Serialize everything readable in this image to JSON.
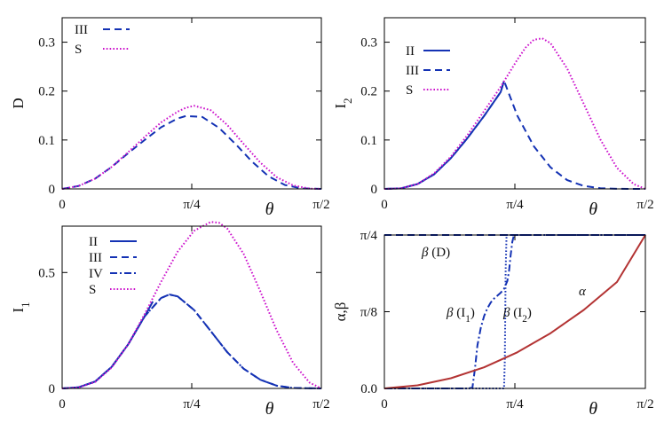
{
  "colors": {
    "blue": "#1432b4",
    "magenta": "#cc11cc",
    "red": "#b33333"
  },
  "chart_data": [
    {
      "id": "D",
      "type": "line",
      "ylabel": "D",
      "xlabel": "θ",
      "xlim": [
        0,
        1.5708
      ],
      "ylim": [
        0,
        0.35
      ],
      "x_ticks": [
        {
          "value": 0,
          "label": "0"
        },
        {
          "value": 0.7854,
          "label": "π/4"
        },
        {
          "value": 1.5708,
          "label": "π/2"
        }
      ],
      "y_ticks": [
        {
          "value": 0,
          "label": "0"
        },
        {
          "value": 0.1,
          "label": "0.1"
        },
        {
          "value": 0.2,
          "label": "0.2"
        },
        {
          "value": 0.3,
          "label": "0.3"
        }
      ],
      "legend_position": "top-left",
      "series": [
        {
          "name": "III",
          "style": "dashed",
          "color": "#1432b4",
          "x": [
            0,
            0.1,
            0.2,
            0.3,
            0.4,
            0.5,
            0.6,
            0.7,
            0.75,
            0.85,
            0.95,
            1.05,
            1.15,
            1.25,
            1.35,
            1.45,
            1.5708
          ],
          "y": [
            0,
            0.006,
            0.021,
            0.045,
            0.073,
            0.1,
            0.126,
            0.144,
            0.149,
            0.147,
            0.125,
            0.092,
            0.056,
            0.026,
            0.008,
            0.001,
            0
          ]
        },
        {
          "name": "S",
          "style": "dotted",
          "color": "#cc11cc",
          "x": [
            0,
            0.1,
            0.2,
            0.3,
            0.4,
            0.5,
            0.6,
            0.7,
            0.75,
            0.8,
            0.9,
            1.0,
            1.1,
            1.2,
            1.3,
            1.4,
            1.5,
            1.5708
          ],
          "y": [
            0,
            0.006,
            0.021,
            0.045,
            0.075,
            0.106,
            0.136,
            0.158,
            0.166,
            0.17,
            0.161,
            0.131,
            0.092,
            0.054,
            0.024,
            0.007,
            0.0005,
            0
          ]
        }
      ]
    },
    {
      "id": "I2",
      "type": "line",
      "ylabel": "I₂",
      "xlabel": "θ",
      "xlim": [
        0,
        1.5708
      ],
      "ylim": [
        0,
        0.35
      ],
      "x_ticks": [
        {
          "value": 0,
          "label": "0"
        },
        {
          "value": 0.7854,
          "label": "π/4"
        },
        {
          "value": 1.5708,
          "label": "π/2"
        }
      ],
      "y_ticks": [
        {
          "value": 0,
          "label": "0"
        },
        {
          "value": 0.1,
          "label": "0.1"
        },
        {
          "value": 0.2,
          "label": "0.2"
        },
        {
          "value": 0.3,
          "label": "0.3"
        }
      ],
      "legend_position": "top-left",
      "series": [
        {
          "name": "II",
          "style": "solid",
          "color": "#1432b4",
          "x": [
            0,
            0.1,
            0.2,
            0.3,
            0.4,
            0.5,
            0.6,
            0.7,
            0.72
          ],
          "y": [
            0,
            0.001,
            0.01,
            0.03,
            0.063,
            0.104,
            0.149,
            0.198,
            0.221
          ]
        },
        {
          "name": "III",
          "style": "dashed",
          "color": "#1432b4",
          "x": [
            0,
            0.1,
            0.2,
            0.3,
            0.4,
            0.5,
            0.6,
            0.7,
            0.72,
            0.8,
            0.9,
            1.0,
            1.1,
            1.2,
            1.3,
            1.4,
            1.5708
          ],
          "y": [
            0,
            0.001,
            0.01,
            0.03,
            0.063,
            0.104,
            0.149,
            0.198,
            0.221,
            0.15,
            0.087,
            0.044,
            0.018,
            0.006,
            0.0015,
            0.0002,
            0
          ]
        },
        {
          "name": "S",
          "style": "dotted",
          "color": "#cc11cc",
          "x": [
            0,
            0.1,
            0.2,
            0.3,
            0.4,
            0.5,
            0.6,
            0.7,
            0.8,
            0.85,
            0.9,
            0.95,
            1.0,
            1.1,
            1.2,
            1.3,
            1.4,
            1.5,
            1.5708
          ],
          "y": [
            0,
            0.001,
            0.01,
            0.032,
            0.066,
            0.11,
            0.159,
            0.209,
            0.264,
            0.289,
            0.305,
            0.308,
            0.298,
            0.246,
            0.174,
            0.101,
            0.043,
            0.01,
            0
          ]
        }
      ]
    },
    {
      "id": "I1",
      "type": "line",
      "ylabel": "I₁",
      "xlabel": "θ",
      "xlim": [
        0,
        1.5708
      ],
      "ylim": [
        0,
        0.7
      ],
      "x_ticks": [
        {
          "value": 0,
          "label": "0"
        },
        {
          "value": 0.7854,
          "label": "π/4"
        },
        {
          "value": 1.5708,
          "label": "π/2"
        }
      ],
      "y_ticks": [
        {
          "value": 0,
          "label": "0"
        },
        {
          "value": 0.5,
          "label": "0.5"
        }
      ],
      "legend_position": "top-left",
      "series": [
        {
          "name": "II",
          "style": "solid",
          "color": "#1432b4",
          "x": [
            0,
            0.1,
            0.2,
            0.3,
            0.4,
            0.5,
            0.55
          ],
          "y": [
            0,
            0.005,
            0.03,
            0.093,
            0.19,
            0.311,
            0.375
          ]
        },
        {
          "name": "III",
          "style": "dashed",
          "color": "#1432b4",
          "x": [
            0,
            0.1,
            0.2,
            0.3,
            0.4,
            0.5,
            0.6,
            0.65,
            0.7,
            0.8,
            0.9,
            1.0,
            1.1,
            1.2,
            1.3,
            1.4,
            1.5708
          ],
          "y": [
            0,
            0.005,
            0.03,
            0.093,
            0.19,
            0.311,
            0.39,
            0.405,
            0.397,
            0.338,
            0.248,
            0.157,
            0.085,
            0.038,
            0.012,
            0.002,
            0
          ]
        },
        {
          "name": "IV",
          "style": "dash-dot",
          "color": "#1432b4",
          "x": [
            0,
            0.1,
            0.2,
            0.3,
            0.4,
            0.5,
            0.6,
            0.65,
            0.7,
            0.8,
            0.9,
            1.0,
            1.1,
            1.2,
            1.3,
            1.4,
            1.5708
          ],
          "y": [
            0,
            0.005,
            0.03,
            0.093,
            0.19,
            0.311,
            0.39,
            0.405,
            0.397,
            0.338,
            0.248,
            0.157,
            0.085,
            0.038,
            0.012,
            0.002,
            0
          ]
        },
        {
          "name": "S",
          "style": "dotted",
          "color": "#cc11cc",
          "x": [
            0,
            0.1,
            0.2,
            0.3,
            0.4,
            0.5,
            0.6,
            0.7,
            0.8,
            0.9,
            0.95,
            1.0,
            1.1,
            1.2,
            1.3,
            1.4,
            1.5,
            1.5708
          ],
          "y": [
            0,
            0.004,
            0.028,
            0.09,
            0.19,
            0.32,
            0.46,
            0.59,
            0.68,
            0.718,
            0.715,
            0.69,
            0.58,
            0.42,
            0.25,
            0.11,
            0.025,
            0
          ]
        }
      ]
    },
    {
      "id": "alpha-beta",
      "type": "line",
      "ylabel": "α,β",
      "xlabel": "θ",
      "xlim": [
        0,
        1.5708
      ],
      "ylim": [
        0,
        0.7854
      ],
      "x_ticks": [
        {
          "value": 0,
          "label": "0"
        },
        {
          "value": 0.7854,
          "label": "π/4"
        },
        {
          "value": 1.5708,
          "label": "π/2"
        }
      ],
      "y_ticks": [
        {
          "value": 0,
          "label": "0.0"
        },
        {
          "value": 0.3927,
          "label": "π/8"
        },
        {
          "value": 0.7854,
          "label": "π/4"
        }
      ],
      "annotations": [
        "β (D)",
        "β (I₁)",
        "β (I₂)",
        "α"
      ],
      "series": [
        {
          "name": "β (D)",
          "style": "dashed",
          "color": "#1432b4",
          "x": [
            0,
            1.5708
          ],
          "y": [
            0.7854,
            0.7854
          ]
        },
        {
          "name": "β (I₁)",
          "style": "dash-dot",
          "color": "#1432b4",
          "x": [
            0,
            0.5,
            0.53,
            0.545,
            0.56,
            0.58,
            0.6,
            0.62,
            0.64,
            0.66,
            0.68,
            0.7,
            0.72,
            0.74,
            0.75,
            0.76,
            0.77,
            0.78,
            1.5708
          ],
          "y": [
            0,
            0,
            0.005,
            0.1,
            0.22,
            0.31,
            0.37,
            0.41,
            0.44,
            0.46,
            0.475,
            0.49,
            0.51,
            0.55,
            0.6,
            0.68,
            0.75,
            0.7854,
            0.7854
          ]
        },
        {
          "name": "β (I₂)",
          "style": "dotted",
          "color": "#1432b4",
          "x": [
            0,
            0.72,
            0.725,
            0.73,
            0.735,
            1.5708
          ],
          "y": [
            0,
            0,
            0.15,
            0.6,
            0.7854,
            0.7854
          ]
        },
        {
          "name": "α",
          "style": "solid",
          "color": "#b33333",
          "x": [
            0,
            0.2,
            0.4,
            0.6,
            0.8,
            1.0,
            1.2,
            1.4,
            1.5708
          ],
          "y": [
            0,
            0.016,
            0.052,
            0.108,
            0.185,
            0.283,
            0.402,
            0.545,
            0.7854
          ]
        }
      ]
    }
  ]
}
